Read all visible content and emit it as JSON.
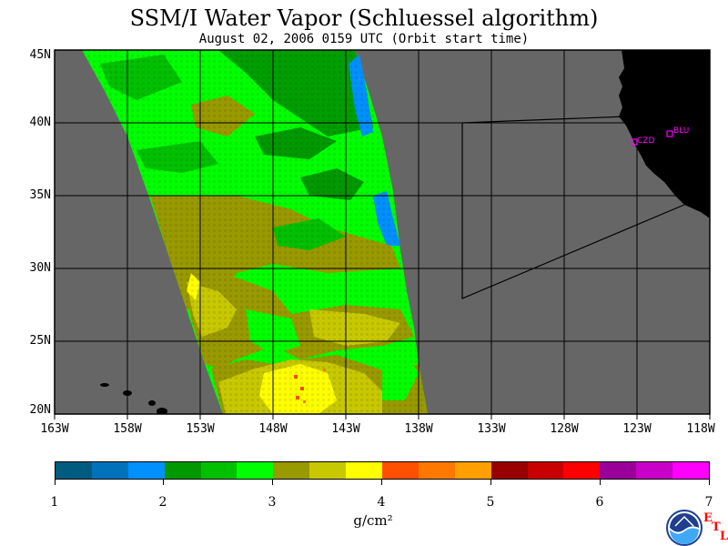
{
  "title": "SSM/I Water Vapor (Schluessel algorithm)",
  "subtitle": "August 02, 2006  0159 UTC  (Orbit start time)",
  "lat_labels": [
    "45N",
    "40N",
    "35N",
    "30N",
    "25N",
    "20N"
  ],
  "lon_labels": [
    "163W",
    "158W",
    "153W",
    "148W",
    "143W",
    "138W",
    "133W",
    "128W",
    "123W",
    "118W"
  ],
  "sites": {
    "czd": "CZD",
    "blu": "BLU"
  },
  "colorbar": {
    "colors": [
      "#005b80",
      "#0072bc",
      "#0090ff",
      "#009900",
      "#00c000",
      "#00ff00",
      "#999900",
      "#c8c800",
      "#ffff00",
      "#ff5000",
      "#ff7800",
      "#ffa000",
      "#990000",
      "#c80000",
      "#ff0000",
      "#990099",
      "#c800c8",
      "#ff00ff"
    ],
    "tick_labels": [
      "1",
      "2",
      "3",
      "4",
      "5",
      "6",
      "7"
    ],
    "unit": "g/cm²"
  },
  "colors": {
    "ocean_background": "#666666",
    "land": "#000000",
    "site_markers": "#ff00ff"
  },
  "credit": {
    "letters": [
      "E",
      "T",
      "L"
    ],
    "logo": "noaa-logo"
  }
}
